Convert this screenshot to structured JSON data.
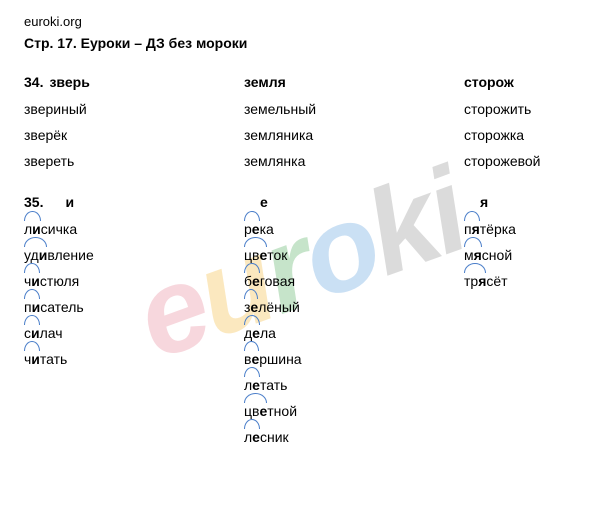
{
  "site_url": "euroki.org",
  "page_title": "Стр. 17. Еуроки – ДЗ без мороки",
  "watermark": {
    "c1": "e",
    "c2": "u",
    "c3": "r",
    "c4": "o",
    "c5": "ki"
  },
  "ex34": {
    "num": "34.",
    "cols": [
      {
        "head": "зверь",
        "words": [
          "звериный",
          "зверёк",
          "звереть"
        ]
      },
      {
        "head": "земля",
        "words": [
          "земельный",
          "земляника",
          "землянка"
        ]
      },
      {
        "head": "сторож",
        "words": [
          "сторожить",
          "сторожка",
          "сторожевой"
        ]
      }
    ]
  },
  "ex35": {
    "num": "35.",
    "cols": [
      {
        "head": "и",
        "words": [
          {
            "pre": "л",
            "hl": "и",
            "post": "сичка"
          },
          {
            "pre": "уд",
            "hl": "и",
            "post": "вление"
          },
          {
            "pre": "ч",
            "hl": "и",
            "post": "стюля"
          },
          {
            "pre": "п",
            "hl": "и",
            "post": "сатель"
          },
          {
            "pre": "с",
            "hl": "и",
            "post": "лач"
          },
          {
            "pre": "ч",
            "hl": "и",
            "post": "тать"
          }
        ]
      },
      {
        "head": "е",
        "words": [
          {
            "pre": "р",
            "hl": "е",
            "post": "ка"
          },
          {
            "pre": "цв",
            "hl": "е",
            "post": "ток"
          },
          {
            "pre": "б",
            "hl": "е",
            "post": "говая"
          },
          {
            "pre": "з",
            "hl": "е",
            "post": "лёный"
          },
          {
            "pre": "д",
            "hl": "е",
            "post": "ла"
          },
          {
            "pre": "в",
            "hl": "е",
            "post": "ршина"
          },
          {
            "pre": "л",
            "hl": "е",
            "post": "тать"
          },
          {
            "pre": "цв",
            "hl": "е",
            "post": "тной"
          },
          {
            "pre": "л",
            "hl": "е",
            "post": "сник"
          }
        ]
      },
      {
        "head": "я",
        "words": [
          {
            "pre": "п",
            "hl": "я",
            "post": "тёрка"
          },
          {
            "pre": "м",
            "hl": "я",
            "post": "сной"
          },
          {
            "pre": "тр",
            "hl": "я",
            "post": "сёт"
          }
        ]
      }
    ]
  }
}
